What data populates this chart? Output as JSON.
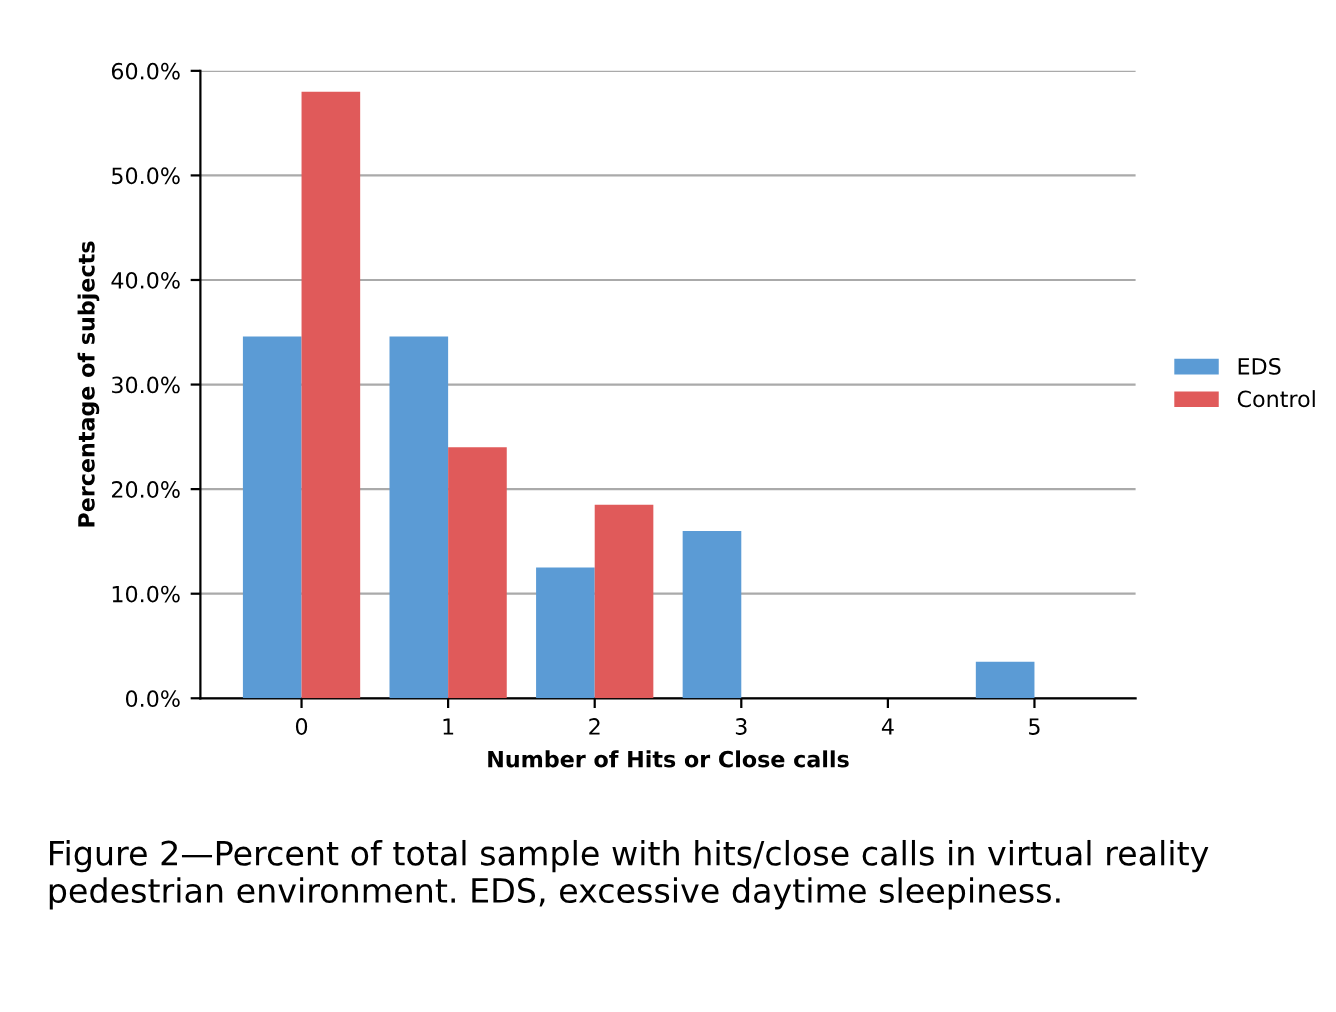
{
  "chart_data": {
    "type": "bar",
    "xlabel": "Number of Hits or Close calls",
    "ylabel": "Percentage of subjects",
    "categories": [
      "0",
      "1",
      "2",
      "3",
      "4",
      "5"
    ],
    "series": [
      {
        "name": "EDS",
        "color": "#5b9bd5",
        "values": [
          34.6,
          34.6,
          12.5,
          16.0,
          0,
          3.5
        ]
      },
      {
        "name": "Control",
        "color": "#e05a5a",
        "values": [
          58.0,
          24.0,
          18.5,
          0,
          0,
          0
        ]
      }
    ],
    "ylim": [
      0,
      60
    ],
    "yticks": [
      {
        "value": 0,
        "label": "0.0%"
      },
      {
        "value": 10,
        "label": "10.0%"
      },
      {
        "value": 20,
        "label": "20.0%"
      },
      {
        "value": 30,
        "label": "30.0%"
      },
      {
        "value": 40,
        "label": "40.0%"
      },
      {
        "value": 50,
        "label": "50.0%"
      },
      {
        "value": 60,
        "label": "60.0%"
      }
    ],
    "grid": "y",
    "legend": "right",
    "annotations": [
      "Figure 2—Percent of total sample with hits/close calls in virtual reality pedestrian environment. EDS, excessive daytime sleepiness."
    ]
  }
}
